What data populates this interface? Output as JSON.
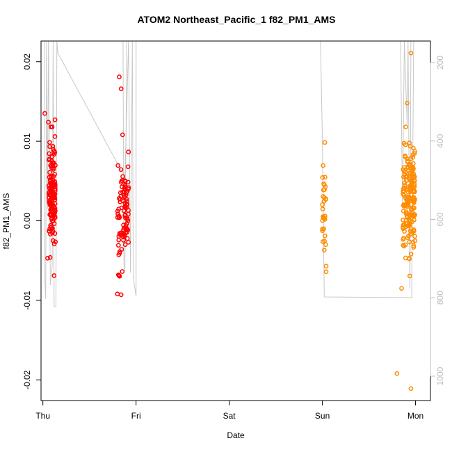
{
  "chart_data": {
    "type": "scatter",
    "title": "ATOM2 Northeast_Pacific_1 f82_PM1_AMS",
    "xlabel": "Date",
    "ylabel": "f82_PM1_AMS",
    "x_ticks": [
      "Thu",
      "Fri",
      "Sat",
      "Sun",
      "Mon"
    ],
    "x_range_days": [
      -0.02,
      4.16
    ],
    "ylim": [
      -0.0226,
      0.0226
    ],
    "y_ticks": [
      -0.02,
      -0.01,
      0.0,
      0.01,
      0.02
    ],
    "y_tick_labels": [
      "-0.02",
      "-0.01",
      "0.00",
      "0.01",
      "0.02"
    ],
    "y2_ticks": [
      200,
      400,
      600,
      800,
      1000
    ],
    "y2_tick_labels": [
      "200",
      "400",
      "600",
      "800",
      "1000"
    ],
    "y2_reversed": true,
    "series": [
      {
        "color": "#ff0000",
        "clusters": [
          {
            "x_center": 0.1,
            "x_spread": 0.07,
            "n": 150,
            "mean": 0.0032,
            "sd": 0.003
          },
          {
            "x_center": 0.86,
            "x_spread": 0.12,
            "n": 95,
            "mean": 0.0015,
            "sd": 0.0035
          }
        ],
        "extra_points": [
          [
            0.02,
            0.0135
          ],
          [
            0.06,
            0.0124
          ],
          [
            0.13,
            0.0127
          ],
          [
            0.82,
            0.0181
          ],
          [
            0.84,
            0.0166
          ],
          [
            0.8,
            -0.0092
          ],
          [
            0.84,
            -0.0093
          ],
          [
            0.05,
            -0.0047
          ],
          [
            0.12,
            -0.0069
          ]
        ]
      },
      {
        "color": "#ff8c00",
        "clusters": [
          {
            "x_center": 3.02,
            "x_spread": 0.04,
            "n": 30,
            "mean": 0.0025,
            "sd": 0.003
          },
          {
            "x_center": 3.93,
            "x_spread": 0.13,
            "n": 190,
            "mean": 0.003,
            "sd": 0.0032
          }
        ],
        "extra_points": [
          [
            3.04,
            -0.0064
          ],
          [
            3.04,
            -0.0057
          ],
          [
            3.02,
            -0.0037
          ],
          [
            3.95,
            0.0211
          ],
          [
            3.91,
            0.0148
          ],
          [
            3.8,
            -0.0192
          ],
          [
            3.95,
            -0.0211
          ],
          [
            3.85,
            -0.0085
          ]
        ]
      }
    ],
    "secondary_line": {
      "color": "#c8c8c8",
      "y2_values_note": "altitude trace"
    }
  }
}
